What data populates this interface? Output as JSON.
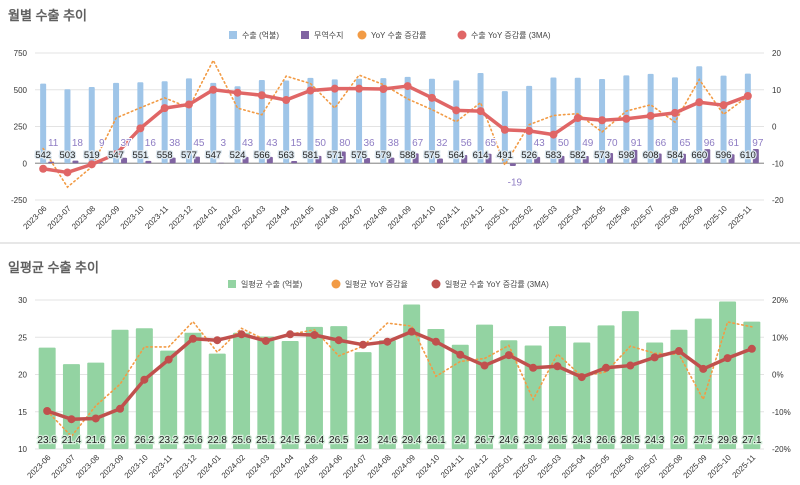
{
  "chart_data": [
    {
      "type": "bar",
      "title": "월별 수출 추이",
      "categories": [
        "2023-06",
        "2023-07",
        "2023-08",
        "2023-09",
        "2023-10",
        "2023-11",
        "2023-12",
        "2024-01",
        "2024-02",
        "2024-03",
        "2024-04",
        "2024-05",
        "2024-06",
        "2024-07",
        "2024-08",
        "2024-09",
        "2024-10",
        "2024-11",
        "2024-12",
        "2025-01",
        "2025-02",
        "2025-03",
        "2025-04",
        "2025-05",
        "2025-06",
        "2025-07",
        "2025-08",
        "2025-09",
        "2025-10",
        "2025-11"
      ],
      "left_axis": {
        "range": [
          -250,
          750
        ],
        "ticks": [
          "750",
          "500",
          "250",
          "0",
          "-250"
        ]
      },
      "right_axis": {
        "range": [
          -20,
          20
        ],
        "ticks": [
          "20",
          "10",
          "0",
          "-10",
          "-20"
        ]
      },
      "legend": [
        "수출 (억불)",
        "무역수지",
        "YoY 수출 증감률",
        "수출 YoY 증감률 (3MA)"
      ],
      "legend_position": "top-center",
      "grid": true,
      "series": [
        {
          "name": "수출 (억불)",
          "type": "bar",
          "axis": "left",
          "color": "#9fc5e8",
          "values": [
            542,
            503,
            519,
            547,
            551,
            558,
            577,
            547,
            524,
            566,
            563,
            581,
            571,
            575,
            579,
            588,
            575,
            564,
            614,
            491,
            526,
            583,
            582,
            573,
            598,
            608,
            584,
            660,
            596,
            610
          ]
        },
        {
          "name": "무역수지",
          "type": "bar",
          "axis": "left",
          "color": "#8064a2",
          "values": [
            11,
            18,
            9,
            37,
            16,
            38,
            45,
            3,
            43,
            43,
            15,
            50,
            80,
            36,
            38,
            67,
            32,
            56,
            65,
            -19,
            43,
            50,
            49,
            70,
            91,
            66,
            65,
            96,
            61,
            97
          ]
        },
        {
          "name": "YoY 수출 증감률",
          "type": "line-dotted",
          "axis": "right",
          "color": "#f29b45",
          "values": [
            -6,
            -16.5,
            -11,
            2.3,
            5.1,
            7.8,
            5.1,
            18,
            5,
            3.2,
            13.7,
            11.7,
            5,
            14,
            11.4,
            7.5,
            4.6,
            1.3,
            6.5,
            -10.5,
            0.5,
            3,
            3.5,
            -1.5,
            4.2,
            5.9,
            1.2,
            12.8,
            3.3,
            8.2
          ]
        },
        {
          "name": "수출 YoY 증감률 (3MA)",
          "type": "line",
          "axis": "right",
          "color": "#e06666",
          "values": [
            -11.5,
            -12.5,
            -10.3,
            -7.5,
            -0.5,
            5,
            6,
            10,
            9.2,
            8.5,
            7.2,
            9.8,
            10.3,
            10.3,
            10.2,
            11,
            7.8,
            4.4,
            4.2,
            -0.9,
            -1.2,
            -2.2,
            2.3,
            1.7,
            2.1,
            2.9,
            3.7,
            6.6,
            5.8,
            8.3
          ]
        }
      ]
    },
    {
      "type": "bar",
      "title": "일평균 수출 추이",
      "categories": [
        "2023-06",
        "2023-07",
        "2023-08",
        "2023-09",
        "2023-10",
        "2023-11",
        "2023-12",
        "2024-01",
        "2024-02",
        "2024-03",
        "2024-04",
        "2024-05",
        "2024-06",
        "2024-07",
        "2024-08",
        "2024-09",
        "2024-10",
        "2024-11",
        "2024-12",
        "2025-01",
        "2025-02",
        "2025-03",
        "2025-04",
        "2025-05",
        "2025-06",
        "2025-07",
        "2025-08",
        "2025-09",
        "2025-10",
        "2025-11"
      ],
      "left_axis": {
        "range": [
          10,
          30
        ],
        "ticks": [
          "30",
          "25",
          "20",
          "15",
          "10"
        ]
      },
      "right_axis": {
        "range": [
          -20,
          20
        ],
        "ticks": [
          "20%",
          "10%",
          "0%",
          "-10%",
          "-20%"
        ]
      },
      "legend": [
        "일평균 수출 (억불)",
        "일평균 YoY 증감율",
        "일평균 수출 YoY 증감률 (3MA)"
      ],
      "legend_position": "top-center",
      "grid": true,
      "series": [
        {
          "name": "일평균 수출 (억불)",
          "type": "bar",
          "axis": "left",
          "color": "#93d3a2",
          "values": [
            23.6,
            21.4,
            21.6,
            26,
            26.2,
            23.2,
            25.6,
            22.8,
            25.6,
            25.1,
            24.5,
            26.4,
            26.5,
            23,
            24.6,
            29.4,
            26.1,
            24,
            26.7,
            24.6,
            23.9,
            26.5,
            24.3,
            26.6,
            28.5,
            24.3,
            26,
            27.5,
            29.8,
            27.1
          ]
        },
        {
          "name": "일평균 YoY 증감율",
          "type": "line-dotted",
          "axis": "right",
          "color": "#f29b45",
          "values": [
            -9.8,
            -16.6,
            -8.4,
            -2.6,
            7.4,
            7.4,
            14.2,
            6,
            12.4,
            9.2,
            10.8,
            12,
            5,
            7.6,
            13.8,
            13,
            -0.5,
            3.5,
            4.3,
            7.8,
            -6.7,
            5.5,
            -0.5,
            0.7,
            7.6,
            5.7,
            5.4,
            -6.7,
            14.1,
            12.8
          ]
        },
        {
          "name": "일평균 수출 YoY 증감률 (3MA)",
          "type": "line",
          "axis": "right",
          "color": "#c0504d",
          "values": [
            -9.8,
            -12,
            -11.8,
            -9.2,
            -1.4,
            4,
            9.6,
            9.2,
            10.8,
            9,
            10.8,
            10.6,
            9.2,
            8,
            8.8,
            11.5,
            8.8,
            5.3,
            2.4,
            5.2,
            1.8,
            2.2,
            -0.7,
            1.8,
            2.4,
            4.6,
            6.3,
            1.5,
            4.4,
            6.9
          ]
        }
      ]
    }
  ]
}
